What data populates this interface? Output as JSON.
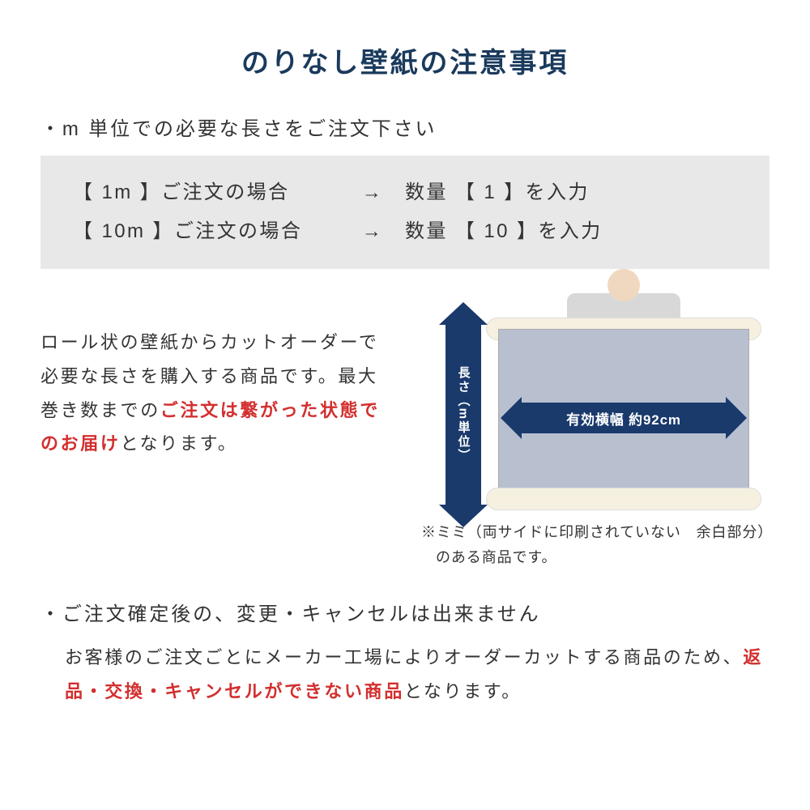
{
  "title": "のりなし壁紙の注意事項",
  "bullet1": "・m 単位での必要な長さをご注文下さい",
  "example": {
    "row1_left": "【  1m  】ご注文の場合",
    "row1_arrow": "→",
    "row1_right": "数量 【  1  】を入力",
    "row2_left": "【 10m 】ご注文の場合",
    "row2_arrow": "→",
    "row2_right": "数量 【  10  】を入力"
  },
  "mid_text_pre": "ロール状の壁紙からカットオーダーで必要な長さを購入する商品です。最大巻き数までの",
  "mid_text_red": "ご注文は繋がった状態でのお届け",
  "mid_text_post": "となります。",
  "diagram": {
    "v_label": "長さ（m単位）",
    "h_label": "有効横幅 約92cm",
    "colors": {
      "arrow": "#1a3a6c",
      "paper": "#b8c0d0",
      "roll": "#f5f0e0"
    }
  },
  "mimi_note": "※ミミ（両サイドに印刷されていない　余白部分）のある商品です。",
  "bullet2": "・ご注文確定後の、変更・キャンセルは出来ません",
  "sub2_pre": "お客様のご注文ごとにメーカー工場によりオーダーカットする商品のため、",
  "sub2_red": "返品・交換・キャンセルができない商品",
  "sub2_post": "となります。"
}
